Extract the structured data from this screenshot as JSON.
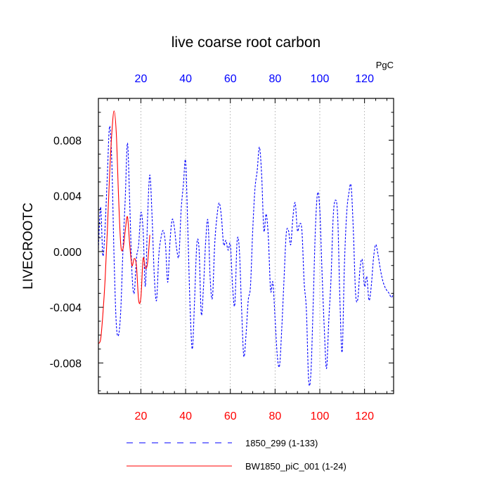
{
  "chart_data": {
    "type": "line",
    "title": "live coarse root carbon",
    "ylabel": "LIVECROOTC",
    "xlabel": "",
    "top_axis_unit": "PgC",
    "xlim": [
      1,
      133
    ],
    "ylim": [
      -0.0102,
      0.011
    ],
    "x_ticks": [
      20,
      40,
      60,
      80,
      100,
      120
    ],
    "x_tick_labels": [
      "20",
      "40",
      "60",
      "80",
      "100",
      "120"
    ],
    "y_ticks": [
      -0.008,
      -0.004,
      0.0,
      0.004,
      0.008
    ],
    "y_tick_labels": [
      "-0.008",
      "-0.004",
      "0.000",
      "0.004",
      "0.008"
    ],
    "grid": "vertical dotted at x ticks",
    "legend_position": "bottom",
    "colors": {
      "series1": "#0000ff",
      "series2": "#ff0000",
      "bottom_ticks": "#ff0000",
      "top_ticks": "#0000ff"
    },
    "series": [
      {
        "name": "1850_299 (1-133)",
        "color": "#0000ff",
        "style": "dashed",
        "x": [
          1,
          2,
          3,
          4,
          5,
          6,
          7,
          8,
          9,
          10,
          11,
          12,
          13,
          14,
          15,
          16,
          17,
          18,
          19,
          20,
          21,
          22,
          23,
          24,
          25,
          26,
          27,
          28,
          29,
          30,
          31,
          32,
          33,
          34,
          35,
          36,
          37,
          38,
          39,
          40,
          41,
          42,
          43,
          44,
          45,
          46,
          47,
          48,
          49,
          50,
          51,
          52,
          53,
          54,
          55,
          56,
          57,
          58,
          59,
          60,
          61,
          62,
          63,
          64,
          65,
          66,
          67,
          68,
          69,
          70,
          71,
          72,
          73,
          74,
          75,
          76,
          77,
          78,
          79,
          80,
          81,
          82,
          83,
          84,
          85,
          86,
          87,
          88,
          89,
          90,
          91,
          92,
          93,
          94,
          95,
          96,
          97,
          98,
          99,
          100,
          101,
          102,
          103,
          104,
          105,
          106,
          107,
          108,
          109,
          110,
          111,
          112,
          113,
          114,
          115,
          116,
          117,
          118,
          119,
          120,
          121,
          122,
          123,
          124,
          125,
          126,
          127,
          128,
          129,
          130,
          131,
          132,
          133
        ],
        "y": [
          0.0002,
          0.0032,
          -0.0003,
          0.0018,
          0.0055,
          0.009,
          0.0064,
          -0.0004,
          -0.0052,
          -0.006,
          -0.0042,
          0.0002,
          0.0038,
          0.0078,
          0.0035,
          -0.0015,
          -0.003,
          -0.0005,
          0.0005,
          0.0028,
          0.0015,
          -0.0025,
          0.0025,
          0.0055,
          0.0025,
          -0.0018,
          -0.0035,
          -0.0003,
          0.001,
          0.0015,
          0.0005,
          -0.0022,
          0.0007,
          0.0023,
          0.0017,
          0.0002,
          -0.0003,
          0.003,
          0.0048,
          0.0065,
          0.0015,
          -0.004,
          -0.007,
          -0.0035,
          0.0005,
          0.0002,
          -0.0045,
          -0.0025,
          0.0008,
          0.0022,
          -0.002,
          -0.0033,
          0.0005,
          0.0025,
          0.0035,
          0.0025,
          0.0005,
          0.0008,
          0.0001,
          0.0005,
          -0.0025,
          -0.0038,
          0.0007,
          0.0002,
          -0.004,
          -0.0075,
          -0.006,
          -0.0035,
          -0.0025,
          0.0015,
          0.0045,
          0.0058,
          0.0075,
          0.0055,
          0.0015,
          0.0027,
          0.001,
          -0.0028,
          -0.0022,
          -0.0048,
          -0.0075,
          -0.0082,
          -0.0055,
          -0.002,
          0.0013,
          0.0015,
          0.0005,
          0.0025,
          0.0035,
          0.0015,
          0.002,
          0.0015,
          -0.0022,
          -0.0042,
          -0.0092,
          -0.0088,
          -0.004,
          0.0015,
          0.0042,
          0.003,
          -0.0015,
          -0.0055,
          -0.0084,
          -0.005,
          -0.002,
          0.0025,
          0.0037,
          0.0025,
          -0.0035,
          -0.0072,
          -0.001,
          0.0027,
          0.0042,
          0.0047,
          0.0015,
          -0.003,
          -0.0034,
          -0.0012,
          -0.0006,
          -0.0025,
          -0.0018,
          -0.0035,
          -0.0025,
          -0.0005,
          0.0005,
          -0.0002,
          -0.0012,
          -0.002,
          -0.0025,
          -0.0028,
          -0.003,
          -0.0033,
          -0.003
        ]
      },
      {
        "name": "BW1850_piC_001 (1-24)",
        "color": "#ff0000",
        "style": "solid",
        "x": [
          1,
          2,
          3,
          4,
          5,
          6,
          7,
          8,
          9,
          10,
          11,
          12,
          13,
          14,
          15,
          16,
          17,
          18,
          19,
          20,
          21,
          22,
          23,
          24
        ],
        "y": [
          -0.0066,
          -0.0063,
          -0.0045,
          -0.002,
          0.0015,
          0.0055,
          0.0085,
          0.0101,
          0.0085,
          0.004,
          0.0005,
          0.0002,
          0.0015,
          0.0025,
          0.0005,
          -0.001,
          -0.0005,
          -0.001,
          -0.0035,
          -0.0033,
          -0.0005,
          -0.0012,
          -0.0008,
          0.0012
        ]
      }
    ]
  }
}
